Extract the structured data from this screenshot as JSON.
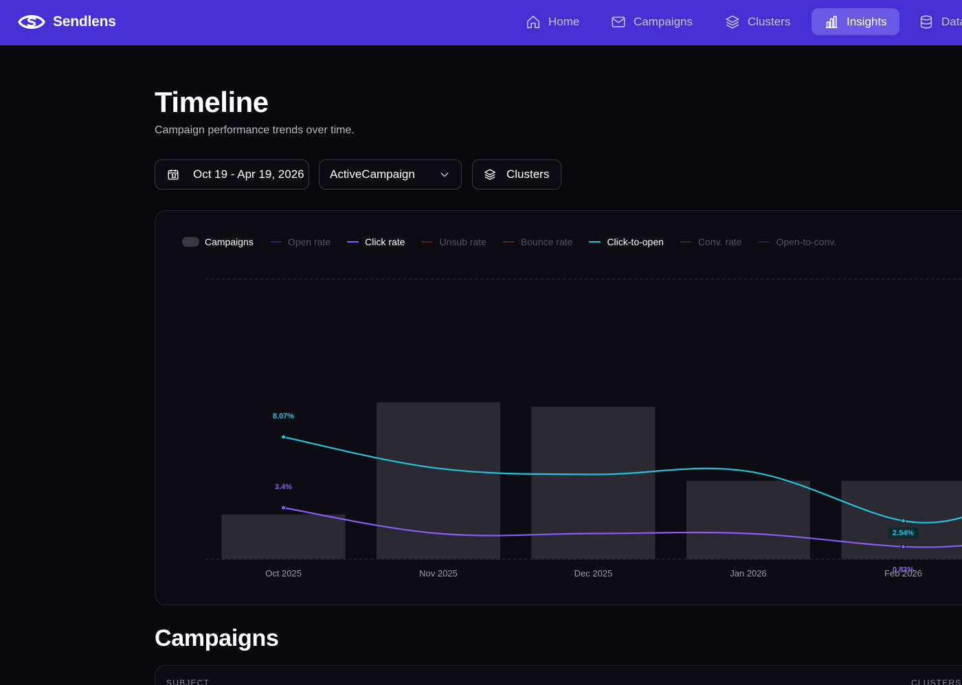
{
  "brand": {
    "name": "Sendlens"
  },
  "nav": {
    "items": [
      {
        "label": "Home",
        "icon": "home-icon"
      },
      {
        "label": "Campaigns",
        "icon": "mail-icon"
      },
      {
        "label": "Clusters",
        "icon": "layers-icon"
      },
      {
        "label": "Insights",
        "icon": "bar-chart-icon",
        "active": true
      },
      {
        "label": "Data",
        "icon": "database-icon"
      }
    ]
  },
  "page": {
    "title": "Timeline",
    "subtitle": "Campaign performance trends over time."
  },
  "filters": {
    "date_range": "Oct 19 - Apr 19, 2026",
    "platform": "ActiveCampaign",
    "clusters_label": "Clusters"
  },
  "colors": {
    "accent": "#4630d3",
    "click_rate": "#8b5cf6",
    "click_to_open": "#22c3dd",
    "bars": "#2b2a32"
  },
  "chart_data": {
    "type": "line",
    "categories": [
      "Oct 2025",
      "Nov 2025",
      "Dec 2025",
      "Jan 2026",
      "Feb 2026"
    ],
    "legend": [
      {
        "name": "Campaigns",
        "kind": "bar",
        "enabled": true
      },
      {
        "name": "Open rate",
        "enabled": false
      },
      {
        "name": "Click rate",
        "enabled": true
      },
      {
        "name": "Unsub rate",
        "enabled": false
      },
      {
        "name": "Bounce rate",
        "enabled": false
      },
      {
        "name": "Click-to-open",
        "enabled": true
      },
      {
        "name": "Conv. rate",
        "enabled": false
      },
      {
        "name": "Open-to-conv.",
        "enabled": false
      }
    ],
    "bars": {
      "name": "Campaigns",
      "values": [
        2,
        7,
        6.8,
        3.5,
        3.5
      ],
      "ylim": [
        0,
        12.5
      ]
    },
    "series": [
      {
        "name": "Click-to-open",
        "values": [
          8.07,
          6.0,
          5.6,
          5.8,
          2.54
        ],
        "labels": [
          "8.07%",
          null,
          null,
          null,
          "2.54%"
        ]
      },
      {
        "name": "Click rate",
        "values": [
          3.4,
          1.7,
          1.7,
          1.7,
          0.83
        ],
        "labels": [
          "3.4%",
          null,
          null,
          null,
          "0.83%"
        ]
      }
    ],
    "ylim": [
      0,
      18.5
    ],
    "grid": true,
    "legend_position": "top-left"
  },
  "campaigns": {
    "title": "Campaigns",
    "columns": [
      "SUBJECT",
      "CLUSTERS"
    ]
  }
}
